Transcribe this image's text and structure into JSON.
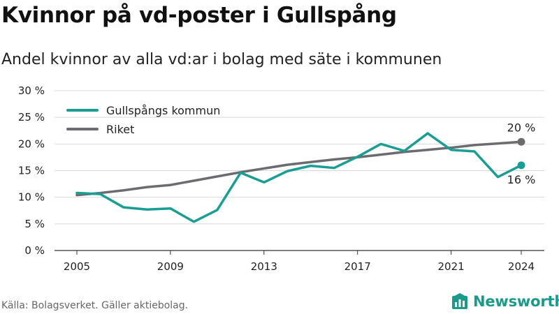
{
  "title": "Kvinnor på vd-poster i Gullspång",
  "subtitle": "Andel kvinnor av alla vd:ar i bolag med säte i kommunen",
  "source": "Källa: Bolagsverket. Gäller aktiebolag.",
  "brand": {
    "name": "Newsworthy",
    "icon": "newsworthy-logo-icon",
    "color": "#1b9a8c"
  },
  "chart_data": {
    "type": "line",
    "x": [
      2005,
      2006,
      2007,
      2008,
      2009,
      2010,
      2011,
      2012,
      2013,
      2014,
      2015,
      2016,
      2017,
      2018,
      2019,
      2020,
      2021,
      2022,
      2023,
      2024
    ],
    "x_ticks": [
      "2005",
      "2009",
      "2013",
      "2017",
      "2021",
      "2024"
    ],
    "y_ticks": [
      "0 %",
      "5 %",
      "10 %",
      "15 %",
      "20 %",
      "25 %",
      "30 %"
    ],
    "ylim": [
      0,
      30
    ],
    "grid": true,
    "legend_position": "top-left",
    "series": [
      {
        "name": "Gullspångs kommun",
        "color": "#1a9e93",
        "values": [
          10.8,
          10.6,
          8.1,
          7.7,
          7.9,
          5.4,
          7.6,
          14.6,
          12.8,
          14.9,
          15.9,
          15.5,
          17.6,
          20.0,
          18.7,
          22.0,
          18.9,
          18.6,
          13.8,
          16.0
        ],
        "end_label": "16 %"
      },
      {
        "name": "Riket",
        "color": "#6b6b70",
        "values": [
          10.4,
          10.8,
          11.3,
          11.9,
          12.3,
          13.1,
          13.9,
          14.7,
          15.4,
          16.1,
          16.6,
          17.1,
          17.5,
          18.0,
          18.5,
          18.9,
          19.3,
          19.8,
          20.1,
          20.4
        ],
        "end_label": "20 %"
      }
    ]
  }
}
